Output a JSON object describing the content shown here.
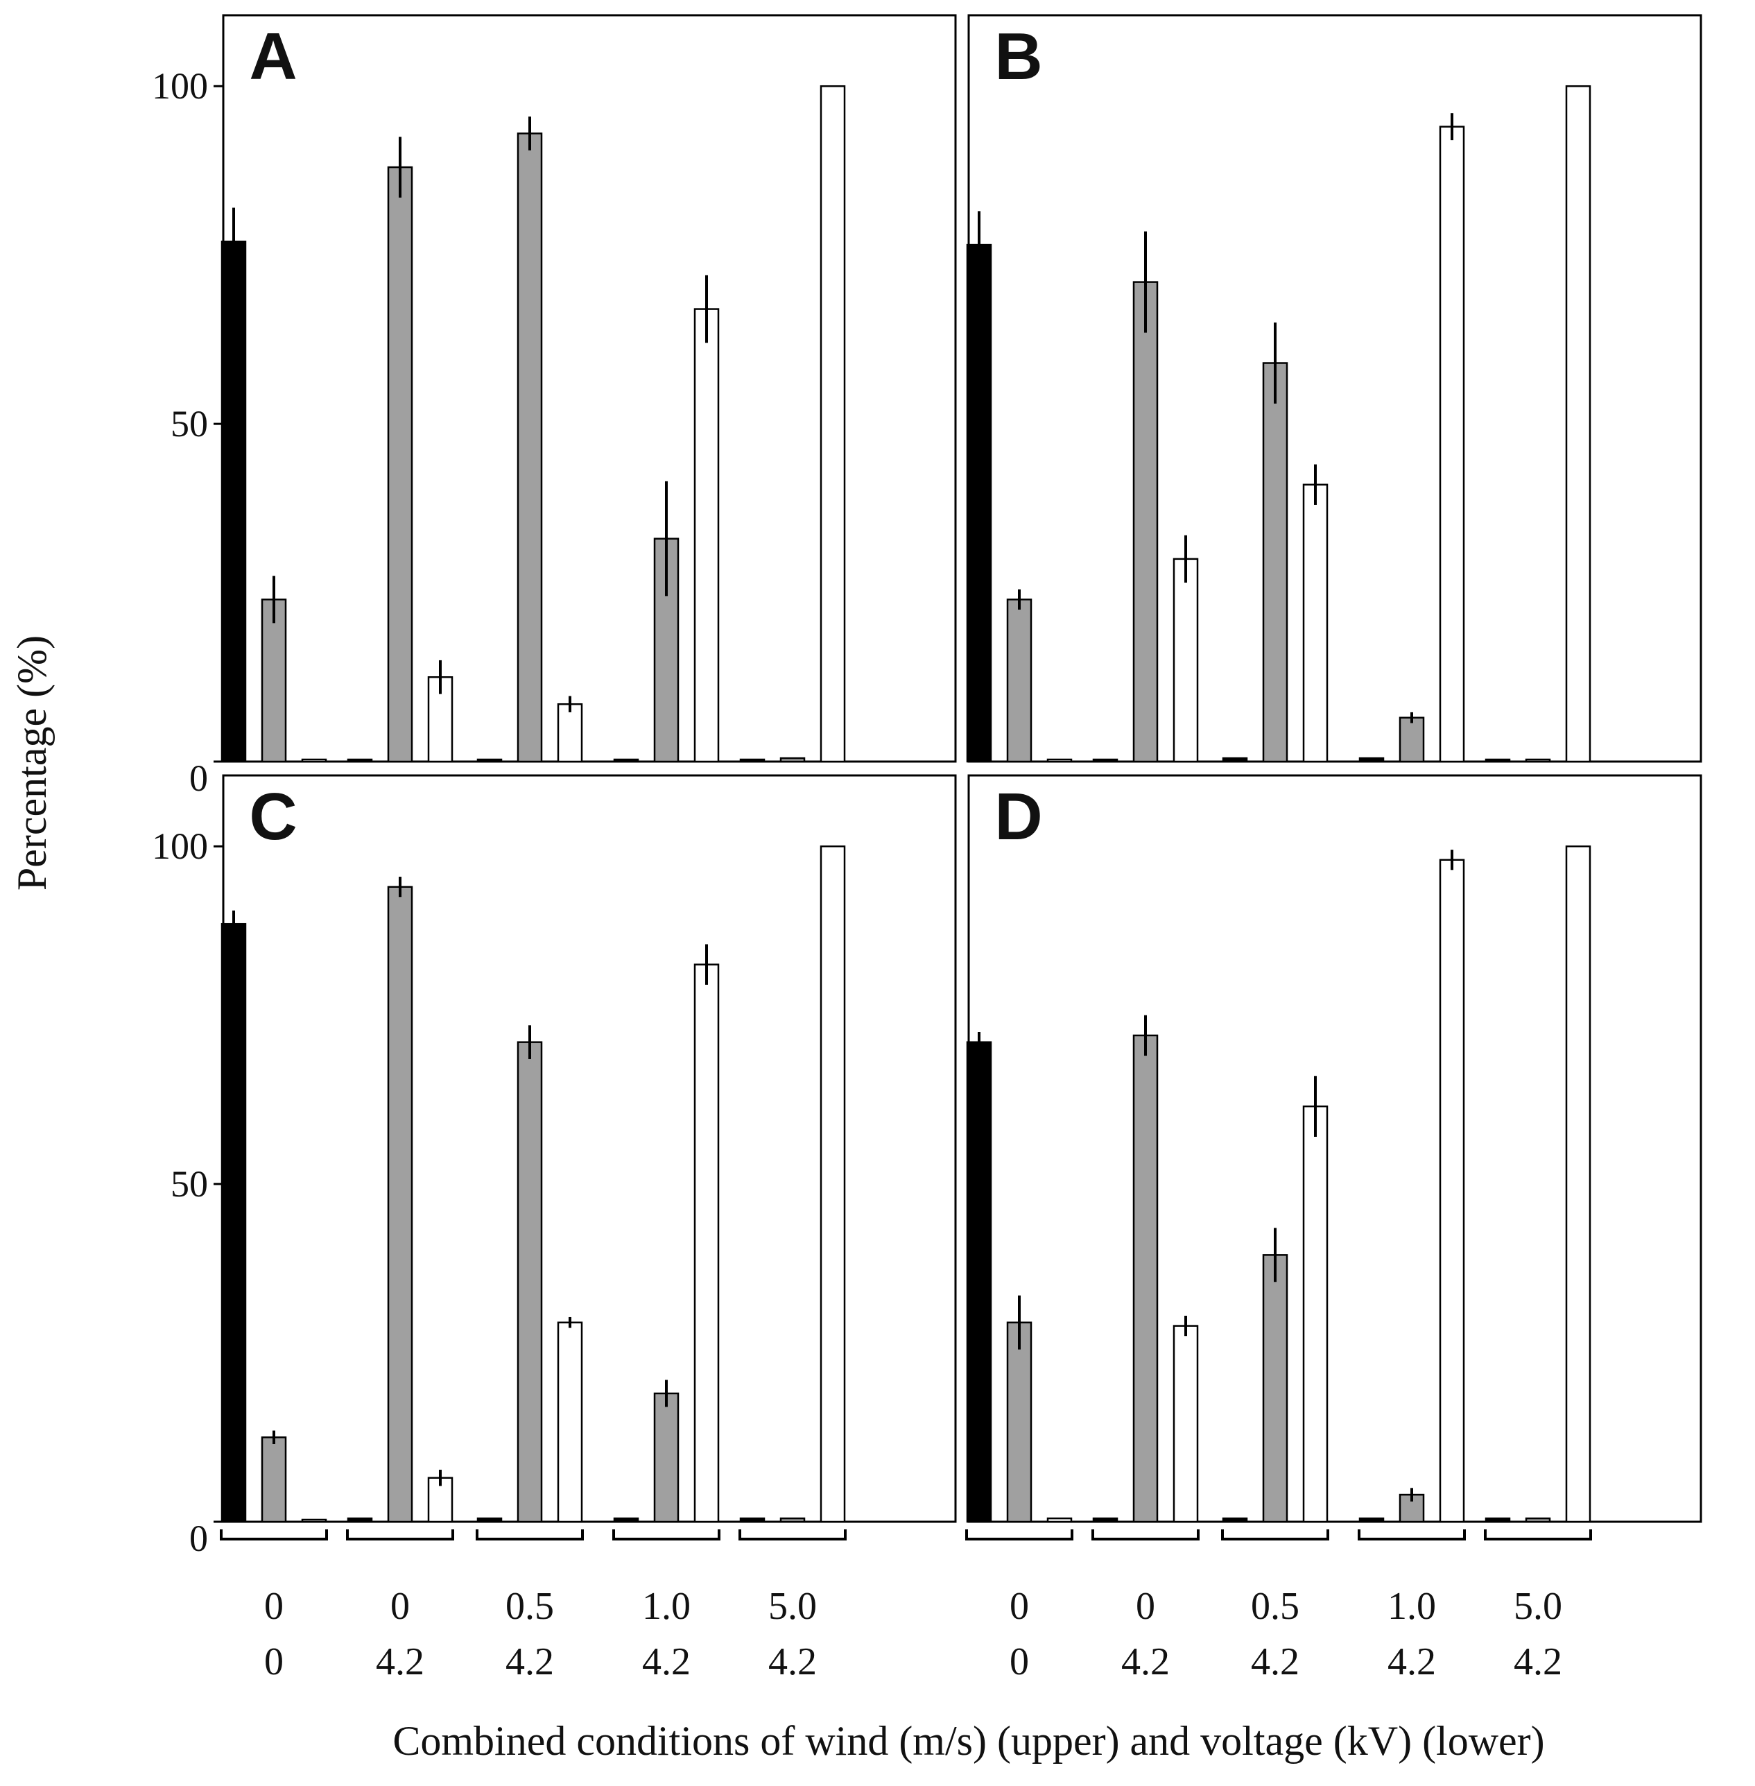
{
  "figure": {
    "ylabel": "Percentage (%)",
    "xlabel": "Combined conditions of wind (m/s) (upper) and voltage (kV) (lower)",
    "y_ticks": [
      "0",
      "50",
      "100"
    ],
    "groups": [
      {
        "wind": "0",
        "voltage": "0"
      },
      {
        "wind": "0",
        "voltage": "4.2"
      },
      {
        "wind": "0.5",
        "voltage": "4.2"
      },
      {
        "wind": "1.0",
        "voltage": "4.2"
      },
      {
        "wind": "5.0",
        "voltage": "4.2"
      }
    ],
    "series_colors": {
      "black": "#000000",
      "gray": "#a0a0a0",
      "white": "#ffffff"
    }
  },
  "chart_data": [
    {
      "type": "bar",
      "panel": "A",
      "ylim": [
        0,
        100
      ],
      "ylabel": "Percentage (%)",
      "categories": [
        "0 / 0",
        "0 / 4.2",
        "0.5 / 4.2",
        "1.0 / 4.2",
        "5.0 / 4.2"
      ],
      "series": [
        {
          "name": "black",
          "values": [
            77,
            0,
            0,
            0,
            0
          ],
          "errors": [
            5,
            0,
            0,
            0,
            0
          ]
        },
        {
          "name": "gray",
          "values": [
            24,
            88,
            93,
            33,
            0.5
          ],
          "errors": [
            3.5,
            4.5,
            2.5,
            8.5,
            0
          ]
        },
        {
          "name": "white",
          "values": [
            0,
            12.5,
            8.5,
            67,
            100
          ],
          "errors": [
            0,
            2.5,
            1.2,
            5,
            0
          ]
        }
      ]
    },
    {
      "type": "bar",
      "panel": "B",
      "ylim": [
        0,
        100
      ],
      "ylabel": "Percentage (%)",
      "categories": [
        "0 / 0",
        "0 / 4.2",
        "0.5 / 4.2",
        "1.0 / 4.2",
        "5.0 / 4.2"
      ],
      "series": [
        {
          "name": "black",
          "values": [
            76.5,
            0,
            0.5,
            0.5,
            0
          ],
          "errors": [
            5,
            0,
            0,
            0,
            0
          ]
        },
        {
          "name": "gray",
          "values": [
            24,
            71,
            59,
            6.5,
            0
          ],
          "errors": [
            1.5,
            7.5,
            6,
            0.8,
            0
          ]
        },
        {
          "name": "white",
          "values": [
            0,
            30,
            41,
            94,
            100
          ],
          "errors": [
            0,
            3.5,
            3,
            2,
            0
          ]
        }
      ]
    },
    {
      "type": "bar",
      "panel": "C",
      "ylim": [
        0,
        100
      ],
      "ylabel": "Percentage (%)",
      "categories": [
        "0 / 0",
        "0 / 4.2",
        "0.5 / 4.2",
        "1.0 / 4.2",
        "5.0 / 4.2"
      ],
      "series": [
        {
          "name": "black",
          "values": [
            88.5,
            0.5,
            0.5,
            0.5,
            0.5
          ],
          "errors": [
            2,
            0,
            0,
            0,
            0
          ]
        },
        {
          "name": "gray",
          "values": [
            12.5,
            94,
            71,
            19,
            0.5
          ],
          "errors": [
            1,
            1.5,
            2.5,
            2,
            0
          ]
        },
        {
          "name": "white",
          "values": [
            0,
            6.5,
            29.5,
            82.5,
            100
          ],
          "errors": [
            0,
            1.2,
            0.8,
            3,
            0
          ]
        }
      ]
    },
    {
      "type": "bar",
      "panel": "D",
      "ylim": [
        0,
        100
      ],
      "ylabel": "Percentage (%)",
      "categories": [
        "0 / 0",
        "0 / 4.2",
        "0.5 / 4.2",
        "1.0 / 4.2",
        "5.0 / 4.2"
      ],
      "series": [
        {
          "name": "black",
          "values": [
            71,
            0.5,
            0.5,
            0.5,
            0.5
          ],
          "errors": [
            1.5,
            0,
            0,
            0,
            0
          ]
        },
        {
          "name": "gray",
          "values": [
            29.5,
            72,
            39.5,
            4,
            0.5
          ],
          "errors": [
            4,
            3,
            4,
            1,
            0
          ]
        },
        {
          "name": "white",
          "values": [
            0.5,
            29,
            61.5,
            98,
            100
          ],
          "errors": [
            0,
            1.5,
            4.5,
            1.5,
            0
          ]
        }
      ]
    }
  ]
}
